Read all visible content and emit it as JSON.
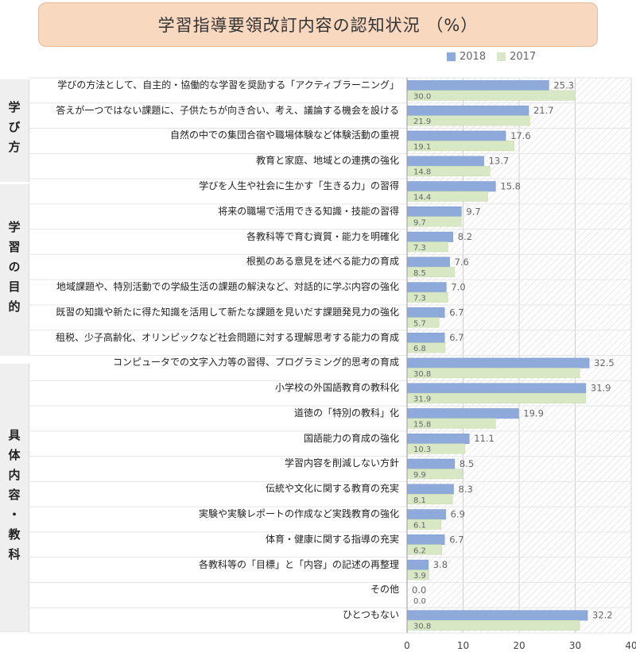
{
  "chart_data": {
    "type": "bar",
    "orientation": "horizontal",
    "title": "学習指導要領改訂内容の認知状況 （%）",
    "xlim": [
      0,
      40
    ],
    "xticks": [
      "0",
      "10",
      "20",
      "30",
      "40"
    ],
    "legend_position": "top-right",
    "groups": [
      {
        "label": "学び方",
        "range": [
          0,
          3
        ]
      },
      {
        "label": "学習の目的",
        "range": [
          4,
          10
        ]
      },
      {
        "label": "具体内容・教科",
        "range": [
          11,
          21
        ]
      }
    ],
    "categories": [
      "学びの方法として、自主的・協働的な学習を奨励する「アクティブラーニング」",
      "答えが一つではない課題に、子供たちが向き合い、考え、議論する機会を設ける",
      "自然の中での集団合宿や職場体験など体験活動の重視",
      "教育と家庭、地域との連携の強化",
      "学びを人生や社会に生かす「生きる力」の習得",
      "将来の職場で活用できる知識・技能の習得",
      "各教科等で育む資質・能力を明確化",
      "根拠のある意見を述べる能力の育成",
      "地域課題や、特別活動での学級生活の課題の解決など、対話的に学ぶ内容の強化",
      "既習の知識や新たに得た知識を活用して新たな課題を見いだす課題発見力の強化",
      "租税、少子高齢化、オリンピックなど社会問題に対する理解思考する能力の育成",
      "コンピュータでの文字入力等の習得、プログラミング的思考の育成",
      "小学校の外国語教育の教科化",
      "道徳の「特別の教科」化",
      "国語能力の育成の強化",
      "学習内容を削減しない方針",
      "伝統や文化に関する教育の充実",
      "実験や実験レポートの作成など実践教育の強化",
      "体育・健康に関する指導の充実",
      "各教科等の「目標」と「内容」の記述の再整理",
      "その他",
      "ひとつもない"
    ],
    "series": [
      {
        "name": "2018",
        "color": "#8eaadb",
        "values": [
          25.3,
          21.7,
          17.6,
          13.7,
          15.8,
          9.7,
          8.2,
          7.6,
          7.0,
          6.7,
          6.7,
          32.5,
          31.9,
          19.9,
          11.1,
          8.5,
          8.3,
          6.9,
          6.7,
          3.8,
          0.0,
          32.2
        ],
        "labels": [
          "25.3",
          "21.7",
          "17.6",
          "13.7",
          "15.8",
          "9.7",
          "8.2",
          "7.6",
          "7.0",
          "6.7",
          "6.7",
          "32.5",
          "31.9",
          "19.9",
          "11.1",
          "8.5",
          "8.3",
          "6.9",
          "6.7",
          "3.8",
          "0.0",
          "32.2"
        ]
      },
      {
        "name": "2017",
        "color": "#d9e8c4",
        "values": [
          30.0,
          21.9,
          19.1,
          14.8,
          14.4,
          9.7,
          7.3,
          8.5,
          7.3,
          5.7,
          6.8,
          30.8,
          31.9,
          15.8,
          10.3,
          9.9,
          8.1,
          6.1,
          6.2,
          3.9,
          0.0,
          30.8
        ],
        "labels": [
          "30.0",
          "21.9",
          "19.1",
          "14.8",
          "14.4",
          "9.7",
          "7.3",
          "8.5",
          "7.3",
          "5.7",
          "6.8",
          "30.8",
          "31.9",
          "15.8",
          "10.3",
          "9.9",
          "8.1",
          "6.1",
          "6.2",
          "3.9",
          "0.0",
          "30.8"
        ]
      }
    ]
  }
}
